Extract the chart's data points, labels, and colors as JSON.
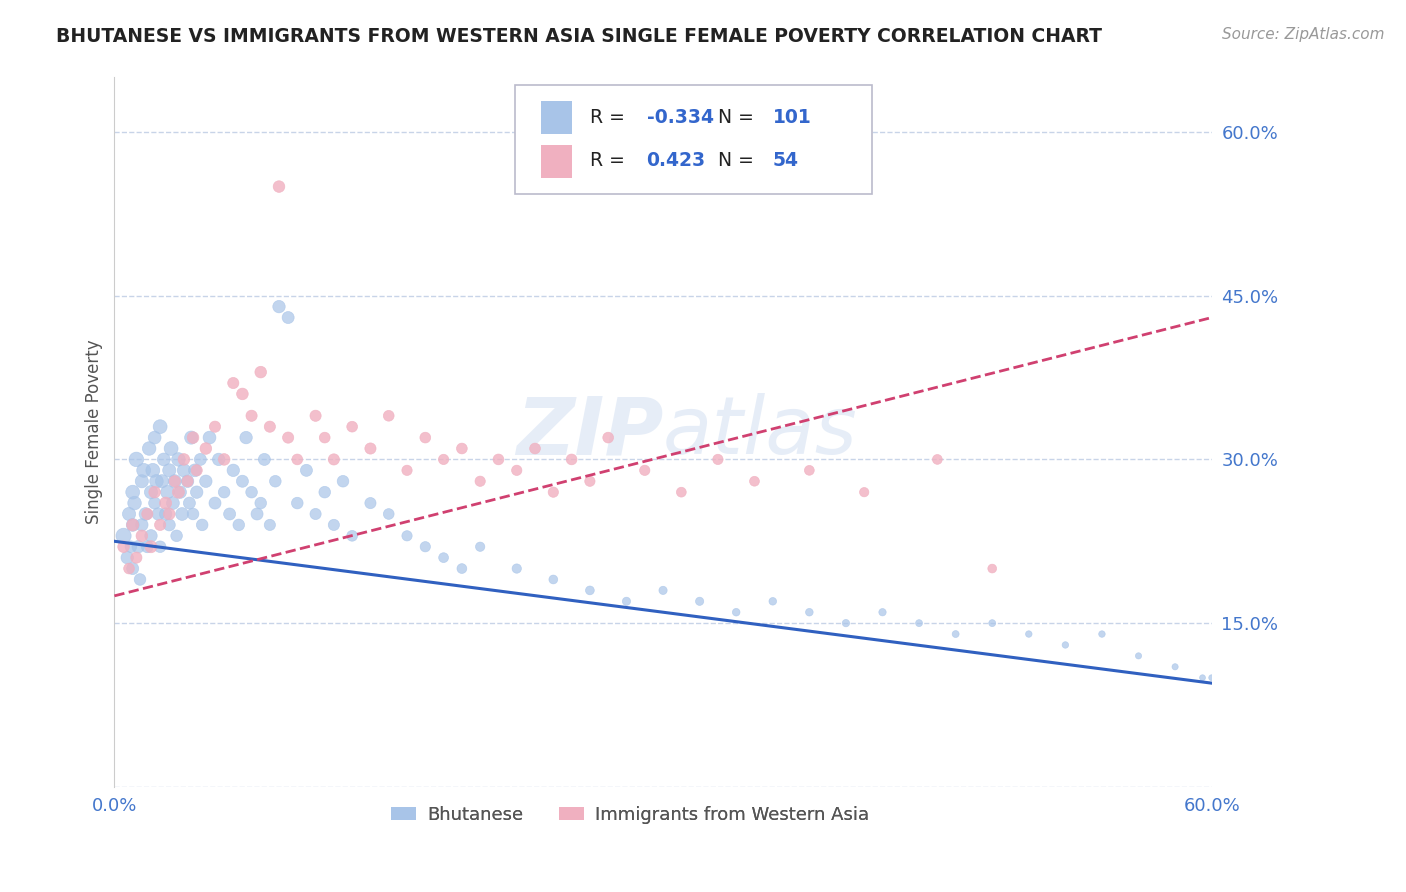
{
  "title": "BHUTANESE VS IMMIGRANTS FROM WESTERN ASIA SINGLE FEMALE POVERTY CORRELATION CHART",
  "source": "Source: ZipAtlas.com",
  "ylabel": "Single Female Poverty",
  "xlim": [
    0.0,
    0.6
  ],
  "ylim": [
    0.0,
    0.65
  ],
  "yticks": [
    0.0,
    0.15,
    0.3,
    0.45,
    0.6
  ],
  "xticks": [
    0.0,
    0.6
  ],
  "xtick_labels": [
    "0.0%",
    "60.0%"
  ],
  "ytick_labels": [
    "",
    "15.0%",
    "30.0%",
    "45.0%",
    "60.0%"
  ],
  "blue_R": -0.334,
  "blue_N": 101,
  "pink_R": 0.423,
  "pink_N": 54,
  "blue_color": "#a8c4e8",
  "pink_color": "#f0b0c0",
  "blue_line_color": "#3060c0",
  "pink_line_color": "#d04070",
  "grid_color": "#c8d4e8",
  "title_color": "#222222",
  "axis_label_color": "#4477cc",
  "tick_color": "#4477cc",
  "watermark": "ZIPatlas",
  "blue_scatter_x": [
    0.005,
    0.007,
    0.008,
    0.009,
    0.01,
    0.01,
    0.01,
    0.011,
    0.012,
    0.013,
    0.014,
    0.015,
    0.015,
    0.016,
    0.017,
    0.018,
    0.019,
    0.02,
    0.02,
    0.021,
    0.022,
    0.022,
    0.023,
    0.024,
    0.025,
    0.025,
    0.026,
    0.027,
    0.028,
    0.029,
    0.03,
    0.03,
    0.031,
    0.032,
    0.033,
    0.034,
    0.035,
    0.036,
    0.037,
    0.038,
    0.04,
    0.041,
    0.042,
    0.043,
    0.044,
    0.045,
    0.047,
    0.048,
    0.05,
    0.052,
    0.055,
    0.057,
    0.06,
    0.063,
    0.065,
    0.068,
    0.07,
    0.072,
    0.075,
    0.078,
    0.08,
    0.082,
    0.085,
    0.088,
    0.09,
    0.095,
    0.1,
    0.105,
    0.11,
    0.115,
    0.12,
    0.125,
    0.13,
    0.14,
    0.15,
    0.16,
    0.17,
    0.18,
    0.19,
    0.2,
    0.22,
    0.24,
    0.26,
    0.28,
    0.3,
    0.32,
    0.34,
    0.36,
    0.38,
    0.4,
    0.42,
    0.44,
    0.46,
    0.48,
    0.5,
    0.52,
    0.54,
    0.56,
    0.58,
    0.595,
    0.6
  ],
  "blue_scatter_y": [
    0.23,
    0.21,
    0.25,
    0.22,
    0.27,
    0.24,
    0.2,
    0.26,
    0.3,
    0.22,
    0.19,
    0.28,
    0.24,
    0.29,
    0.25,
    0.22,
    0.31,
    0.27,
    0.23,
    0.29,
    0.32,
    0.26,
    0.28,
    0.25,
    0.33,
    0.22,
    0.28,
    0.3,
    0.25,
    0.27,
    0.29,
    0.24,
    0.31,
    0.26,
    0.28,
    0.23,
    0.3,
    0.27,
    0.25,
    0.29,
    0.28,
    0.26,
    0.32,
    0.25,
    0.29,
    0.27,
    0.3,
    0.24,
    0.28,
    0.32,
    0.26,
    0.3,
    0.27,
    0.25,
    0.29,
    0.24,
    0.28,
    0.32,
    0.27,
    0.25,
    0.26,
    0.3,
    0.24,
    0.28,
    0.44,
    0.43,
    0.26,
    0.29,
    0.25,
    0.27,
    0.24,
    0.28,
    0.23,
    0.26,
    0.25,
    0.23,
    0.22,
    0.21,
    0.2,
    0.22,
    0.2,
    0.19,
    0.18,
    0.17,
    0.18,
    0.17,
    0.16,
    0.17,
    0.16,
    0.15,
    0.16,
    0.15,
    0.14,
    0.15,
    0.14,
    0.13,
    0.14,
    0.12,
    0.11,
    0.1,
    0.1
  ],
  "blue_scatter_s": [
    120,
    80,
    90,
    70,
    100,
    85,
    75,
    95,
    110,
    80,
    70,
    90,
    80,
    100,
    85,
    75,
    95,
    90,
    80,
    100,
    85,
    75,
    95,
    80,
    100,
    70,
    90,
    85,
    80,
    95,
    90,
    75,
    100,
    85,
    90,
    70,
    95,
    80,
    85,
    90,
    80,
    75,
    90,
    70,
    85,
    80,
    75,
    70,
    80,
    85,
    75,
    80,
    70,
    75,
    80,
    70,
    75,
    80,
    70,
    75,
    70,
    75,
    65,
    70,
    80,
    75,
    70,
    75,
    65,
    70,
    65,
    70,
    60,
    65,
    60,
    55,
    55,
    50,
    50,
    45,
    45,
    40,
    40,
    35,
    35,
    35,
    30,
    30,
    30,
    28,
    28,
    25,
    25,
    25,
    22,
    22,
    22,
    20,
    20,
    18,
    18
  ],
  "pink_scatter_x": [
    0.005,
    0.008,
    0.01,
    0.012,
    0.015,
    0.018,
    0.02,
    0.022,
    0.025,
    0.028,
    0.03,
    0.033,
    0.035,
    0.038,
    0.04,
    0.043,
    0.045,
    0.05,
    0.055,
    0.06,
    0.065,
    0.07,
    0.075,
    0.08,
    0.085,
    0.09,
    0.095,
    0.1,
    0.11,
    0.115,
    0.12,
    0.13,
    0.14,
    0.15,
    0.16,
    0.17,
    0.18,
    0.19,
    0.2,
    0.21,
    0.22,
    0.23,
    0.24,
    0.25,
    0.26,
    0.27,
    0.29,
    0.31,
    0.33,
    0.35,
    0.38,
    0.41,
    0.45,
    0.48
  ],
  "pink_scatter_y": [
    0.22,
    0.2,
    0.24,
    0.21,
    0.23,
    0.25,
    0.22,
    0.27,
    0.24,
    0.26,
    0.25,
    0.28,
    0.27,
    0.3,
    0.28,
    0.32,
    0.29,
    0.31,
    0.33,
    0.3,
    0.37,
    0.36,
    0.34,
    0.38,
    0.33,
    0.55,
    0.32,
    0.3,
    0.34,
    0.32,
    0.3,
    0.33,
    0.31,
    0.34,
    0.29,
    0.32,
    0.3,
    0.31,
    0.28,
    0.3,
    0.29,
    0.31,
    0.27,
    0.3,
    0.28,
    0.32,
    0.29,
    0.27,
    0.3,
    0.28,
    0.29,
    0.27,
    0.3,
    0.2
  ],
  "pink_scatter_s": [
    70,
    60,
    75,
    65,
    70,
    65,
    75,
    70,
    65,
    75,
    70,
    65,
    75,
    70,
    65,
    70,
    65,
    70,
    65,
    70,
    65,
    70,
    65,
    70,
    65,
    70,
    65,
    60,
    65,
    60,
    65,
    60,
    65,
    60,
    55,
    60,
    55,
    60,
    55,
    60,
    55,
    60,
    55,
    60,
    55,
    60,
    55,
    50,
    55,
    50,
    50,
    45,
    50,
    40
  ],
  "blue_trend_x": [
    0.0,
    0.6
  ],
  "blue_trend_y": [
    0.225,
    0.095
  ],
  "pink_trend_x": [
    0.0,
    0.6
  ],
  "pink_trend_y": [
    0.175,
    0.43
  ],
  "legend_label1": "Bhutanese",
  "legend_label2": "Immigrants from Western Asia",
  "figsize": [
    14.06,
    8.92
  ],
  "dpi": 100
}
